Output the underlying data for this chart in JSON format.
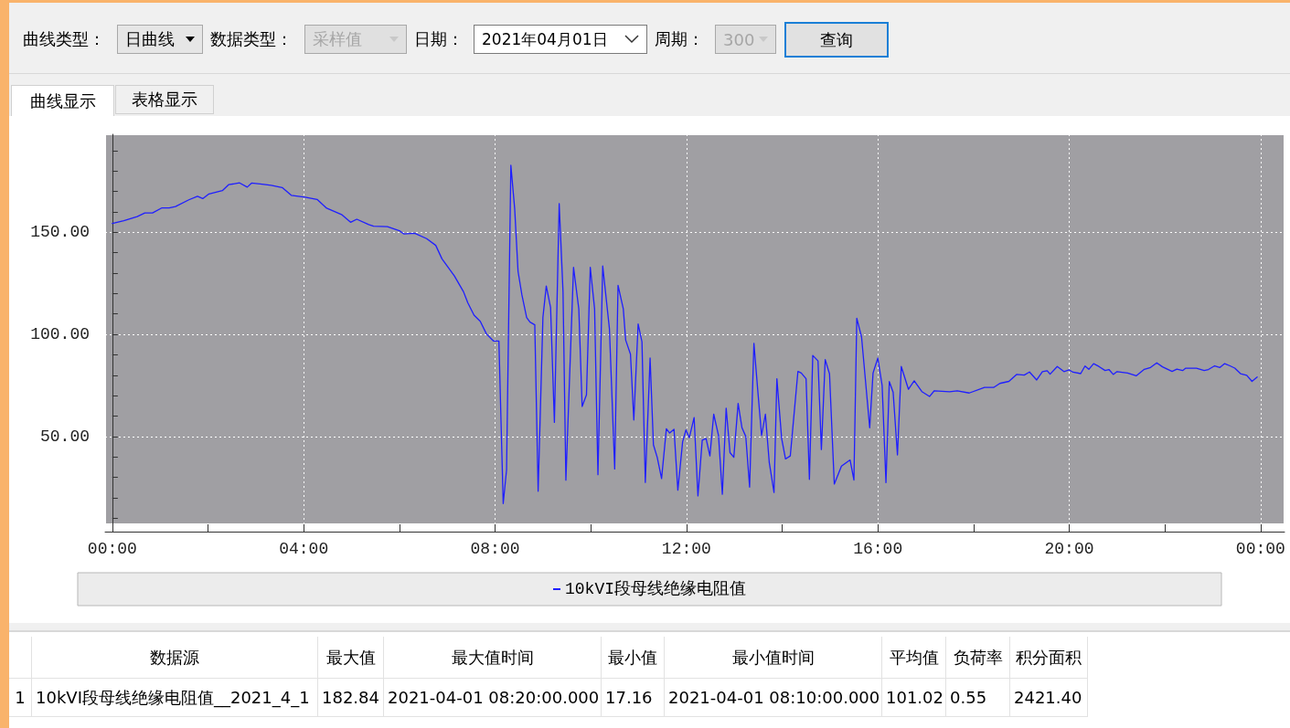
{
  "chart_data": [
    {
      "type": "other",
      "annotations": [
        "曲线类型：",
        "日曲线",
        "数据类型：",
        "采样值",
        "日期：",
        "2021年04月01日",
        "周期：",
        "300",
        "查询",
        "曲线显示",
        "表格显示"
      ]
    },
    {
      "type": "line",
      "xlim": [
        -0.15,
        24.5
      ],
      "ylim": [
        7,
        198
      ],
      "xticks": [
        {
          "value": 0,
          "label": "00:00"
        },
        {
          "value": 2,
          "label": null
        },
        {
          "value": 4,
          "label": "04:00"
        },
        {
          "value": 6,
          "label": null
        },
        {
          "value": 8,
          "label": "08:00"
        },
        {
          "value": 10,
          "label": null
        },
        {
          "value": 12,
          "label": "12:00"
        },
        {
          "value": 14,
          "label": null
        },
        {
          "value": 16,
          "label": "16:00"
        },
        {
          "value": 18,
          "label": null
        },
        {
          "value": 20,
          "label": "20:00"
        },
        {
          "value": 22,
          "label": null
        },
        {
          "value": 24,
          "label": "00:00"
        }
      ],
      "yticks": [
        {
          "value": 10,
          "label": null
        },
        {
          "value": 20,
          "label": null
        },
        {
          "value": 30,
          "label": null
        },
        {
          "value": 40,
          "label": null
        },
        {
          "value": 50,
          "label": "50.00"
        },
        {
          "value": 60,
          "label": null
        },
        {
          "value": 70,
          "label": null
        },
        {
          "value": 80,
          "label": null
        },
        {
          "value": 90,
          "label": null
        },
        {
          "value": 100,
          "label": "100.00"
        },
        {
          "value": 110,
          "label": null
        },
        {
          "value": 120,
          "label": null
        },
        {
          "value": 130,
          "label": null
        },
        {
          "value": 140,
          "label": null
        },
        {
          "value": 150,
          "label": "150.00"
        },
        {
          "value": 160,
          "label": null
        },
        {
          "value": 170,
          "label": null
        },
        {
          "value": 180,
          "label": null
        },
        {
          "value": 190,
          "label": null
        }
      ],
      "grid": true,
      "legend": "bottom",
      "marker": "none",
      "line_style": "solid",
      "x": [
        0,
        0.24,
        0.52,
        0.68,
        0.84,
        1.03,
        1.19,
        1.32,
        1.6,
        1.78,
        1.89,
        2.02,
        2.3,
        2.43,
        2.66,
        2.82,
        2.91,
        3.13,
        3.32,
        3.55,
        3.74,
        4.03,
        4.28,
        4.48,
        4.79,
        4.98,
        5.11,
        5.36,
        5.46,
        5.75,
        6.0,
        6.09,
        6.32,
        6.57,
        6.76,
        6.89,
        7.15,
        7.34,
        7.43,
        7.56,
        7.69,
        7.82,
        7.97,
        8.08,
        8.17,
        8.24,
        8.33,
        8.41,
        8.48,
        8.56,
        8.66,
        8.73,
        8.83,
        8.9,
        9.0,
        9.07,
        9.16,
        9.24,
        9.34,
        9.42,
        9.48,
        9.64,
        9.75,
        9.82,
        9.91,
        9.99,
        10.08,
        10.15,
        10.25,
        10.39,
        10.5,
        10.57,
        10.68,
        10.73,
        10.83,
        10.9,
        10.99,
        11.07,
        11.14,
        11.24,
        11.31,
        11.39,
        11.48,
        11.58,
        11.65,
        11.74,
        11.82,
        11.92,
        11.99,
        12.06,
        12.16,
        12.24,
        12.33,
        12.41,
        12.49,
        12.57,
        12.67,
        12.75,
        12.83,
        12.91,
        12.99,
        13.08,
        13.16,
        13.24,
        13.32,
        13.41,
        13.49,
        13.57,
        13.65,
        13.73,
        13.83,
        13.89,
        13.99,
        14.07,
        14.17,
        14.33,
        14.4,
        14.5,
        14.57,
        14.64,
        14.75,
        14.82,
        14.9,
        14.99,
        15.09,
        15.24,
        15.42,
        15.5,
        15.56,
        15.66,
        15.83,
        15.9,
        16.0,
        16.09,
        16.17,
        16.24,
        16.32,
        16.41,
        16.49,
        16.64,
        16.76,
        16.92,
        17.08,
        17.18,
        17.5,
        17.66,
        17.91,
        18.23,
        18.42,
        18.55,
        18.74,
        18.9,
        19.06,
        19.17,
        19.32,
        19.44,
        19.54,
        19.6,
        19.75,
        19.89,
        20.0,
        20.08,
        20.24,
        20.33,
        20.41,
        20.51,
        20.62,
        20.75,
        20.83,
        20.92,
        21.0,
        21.22,
        21.4,
        21.57,
        21.7,
        21.83,
        21.95,
        22.15,
        22.25,
        22.37,
        22.43,
        22.66,
        22.82,
        22.91,
        23.04,
        23.15,
        23.25,
        23.36,
        23.46,
        23.58,
        23.71,
        23.82,
        23.93
      ],
      "series": [
        {
          "name": "10kVI段母线绝缘电阻值",
          "color": "#1f1fff",
          "values": [
            154.3,
            155.7,
            157.7,
            159.5,
            159.5,
            161.9,
            161.9,
            162.6,
            165.9,
            167.6,
            166.5,
            168.8,
            170.4,
            173.3,
            174.2,
            172.1,
            174.1,
            173.6,
            173,
            171.9,
            168.1,
            167.2,
            166.1,
            161.8,
            158.7,
            154.9,
            156.4,
            153.8,
            153,
            152.8,
            150.8,
            149.2,
            149.5,
            146.9,
            143.6,
            137,
            128.6,
            120.9,
            115.5,
            109.4,
            106.4,
            100.2,
            96.7,
            96.7,
            17.16,
            33.6,
            182.84,
            161.5,
            130.9,
            119.4,
            108.3,
            106,
            104.7,
            23.2,
            108.3,
            123.7,
            113.2,
            56.9,
            164.1,
            120.9,
            28.6,
            132.8,
            112.5,
            64.7,
            70.4,
            132.8,
            112.5,
            31.3,
            133.5,
            102.8,
            34.1,
            124,
            112.5,
            97.2,
            90.3,
            58.1,
            105.1,
            96.4,
            27.5,
            88.4,
            45.9,
            39.7,
            29.4,
            53.8,
            51.7,
            53.5,
            23.7,
            47.4,
            53.2,
            49.4,
            59.3,
            20.9,
            48.2,
            49,
            40.5,
            60.9,
            50.5,
            21.7,
            63.9,
            42.1,
            39.8,
            66.2,
            54.3,
            50,
            25.2,
            95.6,
            72.7,
            50.5,
            60.9,
            37.4,
            22.6,
            78.3,
            49,
            39,
            40.5,
            81.9,
            81.1,
            78.3,
            29,
            89.7,
            87,
            43.6,
            87.7,
            80.7,
            26.7,
            35.5,
            38.5,
            28.7,
            107.9,
            98.7,
            54.3,
            81.1,
            88.4,
            75,
            27.4,
            76.9,
            71.6,
            41,
            84.3,
            73.1,
            77.3,
            72,
            69.6,
            72.4,
            71.9,
            72.4,
            71.3,
            74,
            74,
            76,
            77,
            80.4,
            80.1,
            81.6,
            77.7,
            81.8,
            82.2,
            80.5,
            84.3,
            81.8,
            82.6,
            81.5,
            80.8,
            84.5,
            82.9,
            85.7,
            84.3,
            82.3,
            82.8,
            80.4,
            81.8,
            81.1,
            79.7,
            82.9,
            83.8,
            86.1,
            84.1,
            81.9,
            83,
            82.3,
            83.4,
            83.4,
            82.3,
            82.8,
            84.6,
            83.8,
            85.7,
            84.6,
            83.5,
            80.8,
            80,
            77,
            79.1
          ]
        }
      ]
    },
    {
      "type": "other",
      "categories": [
        null,
        "数据源",
        "最大值",
        "最大值时间",
        "最小值",
        "最小值时间",
        "平均值",
        "负荷率",
        "积分面积"
      ],
      "annotations": [
        "1",
        "10kVI段母线绝缘电阻值__2021_4_1",
        "182.84",
        "2021-04-01 08:20:00.000",
        "17.16",
        "2021-04-01 08:10:00.000",
        "101.02",
        "0.55",
        "2421.40"
      ]
    }
  ]
}
